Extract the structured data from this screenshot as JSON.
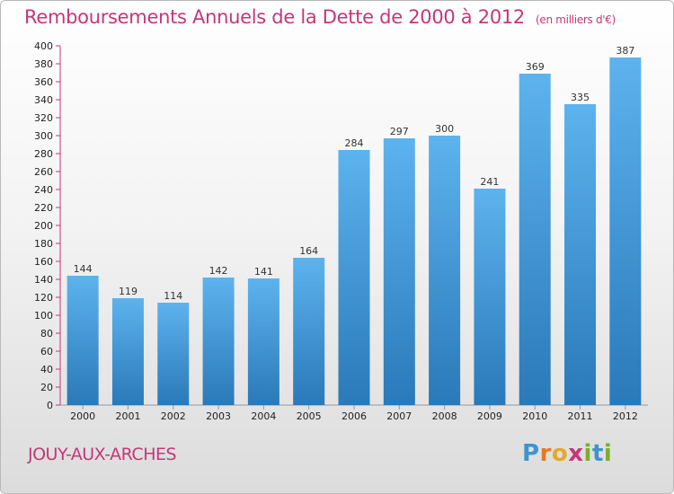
{
  "title": "Remboursements Annuels de la Dette de 2000 à 2012",
  "unit": "(en milliers d'€)",
  "commune": "JOUY-AUX-ARCHES",
  "logo": "Proxiti",
  "colors": {
    "title": "#c4377a",
    "bar_light": "#5db3ee",
    "bar_dark": "#2a79b8",
    "axis": "#c4377a"
  },
  "chart_data": {
    "type": "bar",
    "categories": [
      "2000",
      "2001",
      "2002",
      "2003",
      "2004",
      "2005",
      "2006",
      "2007",
      "2008",
      "2009",
      "2010",
      "2011",
      "2012"
    ],
    "values": [
      144,
      119,
      114,
      142,
      141,
      164,
      284,
      297,
      300,
      241,
      369,
      335,
      387
    ],
    "ylim": [
      0,
      400
    ],
    "yticks": [
      0,
      20,
      40,
      60,
      80,
      100,
      120,
      140,
      160,
      180,
      200,
      220,
      240,
      260,
      280,
      300,
      320,
      340,
      360,
      380,
      400
    ],
    "grid": false,
    "xlabel": "",
    "ylabel": ""
  }
}
